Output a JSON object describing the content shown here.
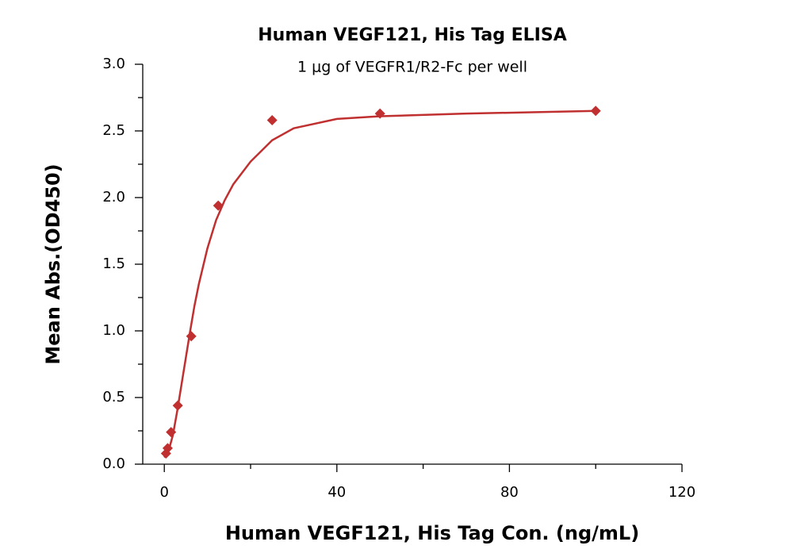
{
  "chart_data": {
    "type": "scatter",
    "title": "Human VEGF121, His Tag ELISA",
    "subtitle": "1 μg of VEGFR1/R2-Fc per well",
    "x_label": "Human VEGF121, His Tag Con. (ng/mL)",
    "y_label": "Mean Abs.(OD450)",
    "xlim": [
      -5,
      120
    ],
    "ylim": [
      0,
      3
    ],
    "xticks": [
      0,
      40,
      80,
      120
    ],
    "xminorticks": [
      20,
      60,
      100
    ],
    "yticks": [
      {
        "value": 0,
        "label": "0.0"
      },
      {
        "value": 0.5,
        "label": "0.5"
      },
      {
        "value": 1,
        "label": "1.0"
      },
      {
        "value": 1.5,
        "label": "1.5"
      },
      {
        "value": 2,
        "label": "2.0"
      },
      {
        "value": 2.5,
        "label": "2.5"
      },
      {
        "value": 3,
        "label": "3.0"
      }
    ],
    "yminorticks": [
      0.25,
      0.75,
      1.25,
      1.75,
      2.25,
      2.75
    ],
    "color": "#c03030",
    "x": [
      0.39,
      0.78,
      1.56,
      3.125,
      6.25,
      12.5,
      25,
      50,
      100
    ],
    "values": [
      0.08,
      0.12,
      0.24,
      0.44,
      0.96,
      1.94,
      2.58,
      2.63,
      2.65
    ],
    "curve": {
      "x": [
        0,
        1,
        2,
        3,
        4,
        5,
        6,
        7,
        8,
        10,
        12,
        14,
        16,
        20,
        25,
        30,
        40,
        50,
        70,
        100
      ],
      "values": [
        0.05,
        0.1,
        0.22,
        0.4,
        0.6,
        0.8,
        1.0,
        1.19,
        1.35,
        1.62,
        1.83,
        1.98,
        2.1,
        2.27,
        2.43,
        2.52,
        2.59,
        2.61,
        2.63,
        2.65
      ]
    }
  }
}
